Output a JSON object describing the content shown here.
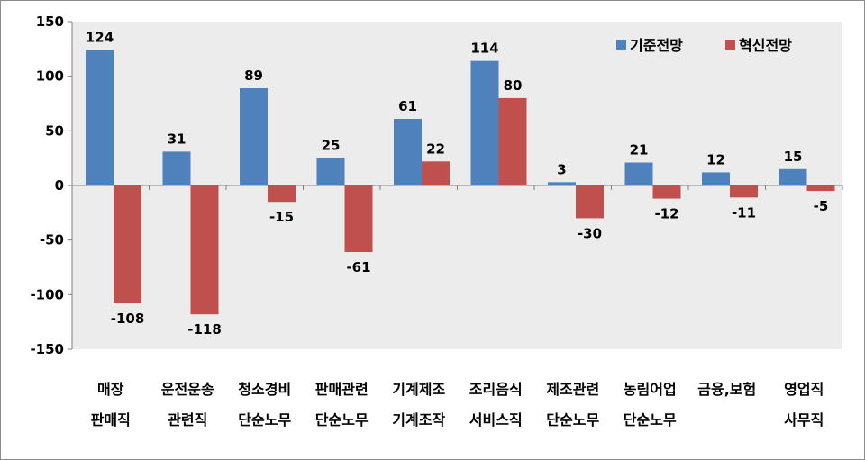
{
  "chart_data": {
    "type": "bar",
    "title": "",
    "xlabel": "",
    "ylabel": "",
    "ylim": [
      -150,
      150
    ],
    "yticks": [
      150,
      100,
      50,
      0,
      -50,
      -100,
      -150
    ],
    "grid": false,
    "legend_position": "top-right",
    "categories": [
      [
        "매장",
        "판매직"
      ],
      [
        "운전운송",
        "관련직"
      ],
      [
        "청소경비",
        "단순노무"
      ],
      [
        "판매관련",
        "단순노무"
      ],
      [
        "기계제조",
        "기계조작"
      ],
      [
        "조리음식",
        "서비스직"
      ],
      [
        "제조관련",
        "단순노무"
      ],
      [
        "농림어업",
        "단순노무"
      ],
      [
        "금융,보험",
        ""
      ],
      [
        "영업직",
        "사무직"
      ]
    ],
    "series": [
      {
        "name": "기준전망",
        "color": "#4F81BD",
        "values": [
          124,
          31,
          89,
          25,
          61,
          114,
          3,
          21,
          12,
          15
        ]
      },
      {
        "name": "혁신전망",
        "color": "#C0504D",
        "values": [
          -108,
          -118,
          -15,
          -61,
          22,
          80,
          -30,
          -12,
          -11,
          -5
        ]
      }
    ]
  }
}
